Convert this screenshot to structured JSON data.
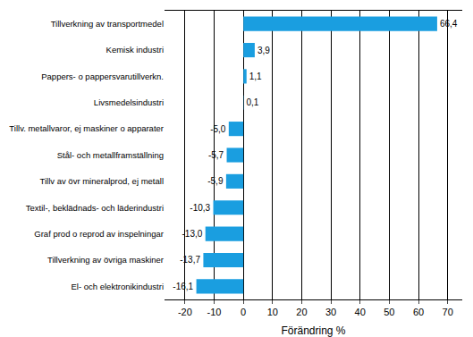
{
  "chart_data": {
    "type": "bar",
    "orientation": "horizontal",
    "categories": [
      "Tillverkning av transportmedel",
      "Kemisk industri",
      "Pappers- o pappersvarutillverkn.",
      "Livsmedelsindustri",
      "Tillv. metallvaror, ej maskiner o apparater",
      "Stål- och metallframställning",
      "Tillv av övr mineralprod, ej metall",
      "Textil-, beklädnads- och läderindustri",
      "Graf prod o reprod av inspelningar",
      "Tillverkning av övriga maskiner",
      "El- och elektronikindustri"
    ],
    "values": [
      66.4,
      3.9,
      1.1,
      0.1,
      -5.0,
      -5.7,
      -5.9,
      -10.3,
      -13.0,
      -13.7,
      -16.1
    ],
    "value_labels": [
      "66,4",
      "3,9",
      "1,1",
      "0,1",
      "-5,0",
      "-5,7",
      "-5,9",
      "-10,3",
      "-13,0",
      "-13,7",
      "-16,1"
    ],
    "data_labels": true,
    "color": "#1a9ee0",
    "x_label": "Förändring %",
    "xlim": [
      -27,
      75
    ],
    "xticks": [
      -20,
      -10,
      0,
      10,
      20,
      30,
      40,
      50,
      60,
      70
    ],
    "grid": true
  }
}
